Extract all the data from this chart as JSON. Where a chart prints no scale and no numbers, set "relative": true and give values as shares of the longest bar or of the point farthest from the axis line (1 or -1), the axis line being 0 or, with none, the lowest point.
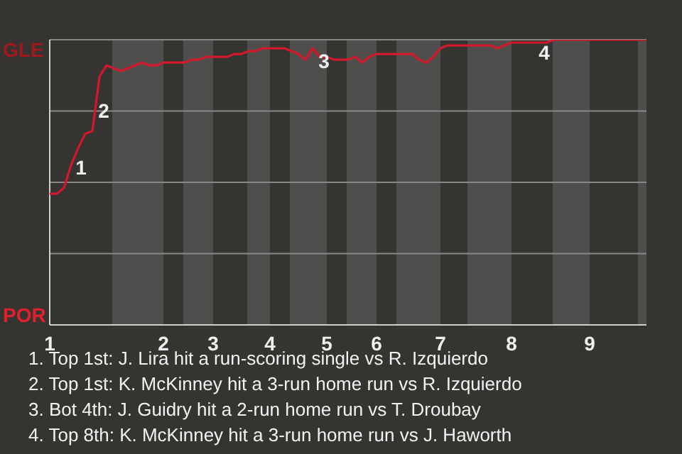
{
  "chart_data": {
    "type": "line",
    "relative": true,
    "categories": [
      "1",
      null,
      null,
      null,
      null,
      null,
      null,
      null,
      null,
      null,
      null,
      null,
      null,
      null,
      null,
      null,
      "2",
      null,
      null,
      null,
      null,
      null,
      null,
      "3",
      null,
      null,
      null,
      null,
      null,
      null,
      null,
      "4",
      null,
      null,
      null,
      null,
      null,
      null,
      null,
      "5",
      null,
      null,
      null,
      null,
      null,
      null,
      "6",
      null,
      null,
      null,
      null,
      null,
      null,
      null,
      null,
      "7",
      null,
      null,
      null,
      null,
      null,
      null,
      null,
      null,
      null,
      "8",
      null,
      null,
      null,
      null,
      null,
      null,
      null,
      null,
      null,
      null,
      "9",
      null,
      null,
      null,
      null,
      null,
      null,
      null,
      null
    ],
    "series": [
      {
        "color": "#d3182c",
        "values": [
          0.46,
          0.46,
          0.48,
          0.56,
          0.62,
          0.67,
          0.68,
          0.87,
          0.91,
          0.9,
          0.89,
          0.9,
          0.91,
          0.92,
          0.91,
          0.91,
          0.92,
          0.92,
          0.92,
          0.92,
          0.93,
          0.93,
          0.94,
          0.94,
          0.94,
          0.94,
          0.95,
          0.95,
          0.96,
          0.96,
          0.97,
          0.97,
          0.97,
          0.97,
          0.96,
          0.95,
          0.93,
          0.97,
          0.94,
          0.94,
          0.93,
          0.93,
          0.93,
          0.94,
          0.92,
          0.94,
          0.95,
          0.95,
          0.95,
          0.95,
          0.95,
          0.95,
          0.93,
          0.92,
          0.94,
          0.97,
          0.98,
          0.98,
          0.98,
          0.98,
          0.98,
          0.98,
          0.98,
          0.97,
          0.98,
          0.99,
          0.99,
          0.99,
          0.99,
          0.99,
          0.99,
          1.0,
          1.0,
          1.0,
          1.0,
          1.0,
          1.0,
          1.0,
          1.0,
          1.0,
          1.0,
          1.0,
          1.0,
          1.0,
          1.0
        ]
      }
    ],
    "ref_lines": [
      {
        "axis": "y",
        "value": 0.25,
        "color": "#8a8886"
      },
      {
        "axis": "y",
        "value": 0.5,
        "color": "#8a8886"
      },
      {
        "axis": "y",
        "value": 0.75,
        "color": "#8a8886"
      },
      {
        "axis": "y",
        "value": 1,
        "color": "#8a8886"
      }
    ],
    "annotations": [
      "GLE",
      "POR",
      "1",
      "2",
      "3",
      "4",
      "1. Top 1st: J. Lira hit a run-scoring single vs R. Izquierdo",
      "2. Top 1st: K. McKinney hit a 3-run home run vs R. Izquierdo",
      "3. Bot 4th: J. Guidry hit a 2-run home run vs T. Droubay",
      "4. Top 8th: K. McKinney hit a 3-run home run vs J. Haworth"
    ]
  }
}
